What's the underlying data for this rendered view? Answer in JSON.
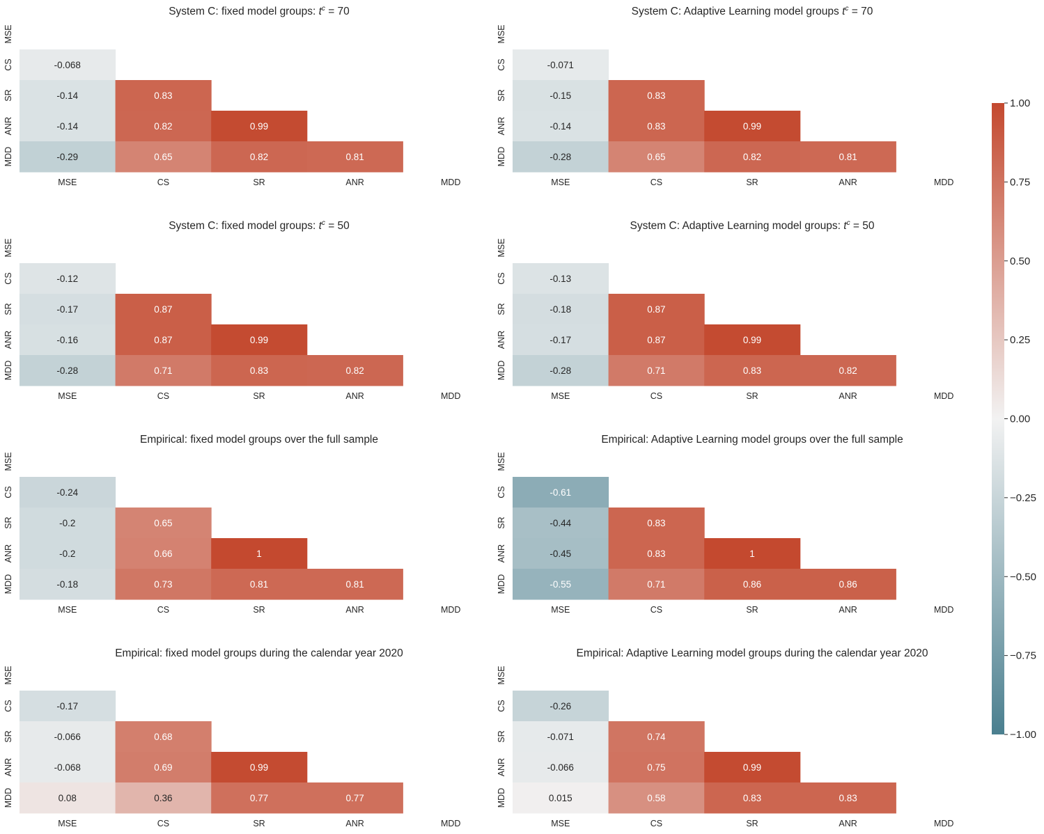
{
  "chart_data": {
    "type": "heatmap",
    "variables": [
      "MSE",
      "CS",
      "SR",
      "ANR",
      "MDD"
    ],
    "mask": "upper-triangle including diagonal (lower-triangular correlation matrix)",
    "colorbar": {
      "range": [
        -1.0,
        1.0
      ],
      "ticks": [
        "1.00",
        "0.75",
        "0.50",
        "0.25",
        "0.00",
        "−0.25",
        "−0.50",
        "−0.75",
        "−1.00"
      ],
      "tick_values": [
        1.0,
        0.75,
        0.5,
        0.25,
        0.0,
        -0.25,
        -0.5,
        -0.75,
        -1.0
      ],
      "negative_color": "#4a7f8f",
      "center_color": "#f2f2f2",
      "positive_color": "#c4492f",
      "placement": "right"
    },
    "panels": [
      {
        "title_prefix": "System C: fixed model groups: ",
        "title_sym": "t",
        "title_sup": "c",
        "title_suffix": " = 70",
        "lower": [
          [
            -0.068
          ],
          [
            -0.14,
            0.83
          ],
          [
            -0.14,
            0.82,
            0.99
          ],
          [
            -0.29,
            0.65,
            0.82,
            0.81
          ]
        ],
        "labels": [
          [
            "-0.068"
          ],
          [
            "-0.14",
            "0.83"
          ],
          [
            "-0.14",
            "0.82",
            "0.99"
          ],
          [
            "-0.29",
            "0.65",
            "0.82",
            "0.81"
          ]
        ]
      },
      {
        "title_prefix": "System C: Adaptive Learning model groups ",
        "title_sym": "t",
        "title_sup": "c",
        "title_suffix": " = 70",
        "lower": [
          [
            -0.071
          ],
          [
            -0.15,
            0.83
          ],
          [
            -0.14,
            0.83,
            0.99
          ],
          [
            -0.28,
            0.65,
            0.82,
            0.81
          ]
        ],
        "labels": [
          [
            "-0.071"
          ],
          [
            "-0.15",
            "0.83"
          ],
          [
            "-0.14",
            "0.83",
            "0.99"
          ],
          [
            "-0.28",
            "0.65",
            "0.82",
            "0.81"
          ]
        ]
      },
      {
        "title_prefix": "System C: fixed model groups: ",
        "title_sym": "t",
        "title_sup": "c",
        "title_suffix": " = 50",
        "lower": [
          [
            -0.12
          ],
          [
            -0.17,
            0.87
          ],
          [
            -0.16,
            0.87,
            0.99
          ],
          [
            -0.28,
            0.71,
            0.83,
            0.82
          ]
        ],
        "labels": [
          [
            "-0.12"
          ],
          [
            "-0.17",
            "0.87"
          ],
          [
            "-0.16",
            "0.87",
            "0.99"
          ],
          [
            "-0.28",
            "0.71",
            "0.83",
            "0.82"
          ]
        ]
      },
      {
        "title_prefix": "System C: Adaptive Learning model groups: ",
        "title_sym": "t",
        "title_sup": "c",
        "title_suffix": " = 50",
        "lower": [
          [
            -0.13
          ],
          [
            -0.18,
            0.87
          ],
          [
            -0.17,
            0.87,
            0.99
          ],
          [
            -0.28,
            0.71,
            0.83,
            0.82
          ]
        ],
        "labels": [
          [
            "-0.13"
          ],
          [
            "-0.18",
            "0.87"
          ],
          [
            "-0.17",
            "0.87",
            "0.99"
          ],
          [
            "-0.28",
            "0.71",
            "0.83",
            "0.82"
          ]
        ]
      },
      {
        "title_prefix": "Empirical: fixed model groups over the full sample",
        "title_sym": "",
        "title_sup": "",
        "title_suffix": "",
        "lower": [
          [
            -0.24
          ],
          [
            -0.2,
            0.65
          ],
          [
            -0.2,
            0.66,
            1
          ],
          [
            -0.18,
            0.73,
            0.81,
            0.81
          ]
        ],
        "labels": [
          [
            "-0.24"
          ],
          [
            "-0.2",
            "0.65"
          ],
          [
            "-0.2",
            "0.66",
            "1"
          ],
          [
            "-0.18",
            "0.73",
            "0.81",
            "0.81"
          ]
        ]
      },
      {
        "title_prefix": "Empirical: Adaptive Learning model groups over the full sample",
        "title_sym": "",
        "title_sup": "",
        "title_suffix": "",
        "lower": [
          [
            -0.61
          ],
          [
            -0.44,
            0.83
          ],
          [
            -0.45,
            0.83,
            1
          ],
          [
            -0.55,
            0.71,
            0.86,
            0.86
          ]
        ],
        "labels": [
          [
            "-0.61"
          ],
          [
            "-0.44",
            "0.83"
          ],
          [
            "-0.45",
            "0.83",
            "1"
          ],
          [
            "-0.55",
            "0.71",
            "0.86",
            "0.86"
          ]
        ]
      },
      {
        "title_prefix": "Empirical: fixed model groups during the calendar year 2020",
        "title_sym": "",
        "title_sup": "",
        "title_suffix": "",
        "lower": [
          [
            -0.17
          ],
          [
            -0.066,
            0.68
          ],
          [
            -0.068,
            0.69,
            0.99
          ],
          [
            0.08,
            0.36,
            0.77,
            0.77
          ]
        ],
        "labels": [
          [
            "-0.17"
          ],
          [
            "-0.066",
            "0.68"
          ],
          [
            "-0.068",
            "0.69",
            "0.99"
          ],
          [
            "0.08",
            "0.36",
            "0.77",
            "0.77"
          ]
        ]
      },
      {
        "title_prefix": "Empirical: Adaptive Learning model groups during the calendar year 2020",
        "title_sym": "",
        "title_sup": "",
        "title_suffix": "",
        "lower": [
          [
            -0.26
          ],
          [
            -0.071,
            0.74
          ],
          [
            -0.066,
            0.75,
            0.99
          ],
          [
            0.015,
            0.58,
            0.83,
            0.83
          ]
        ],
        "labels": [
          [
            "-0.26"
          ],
          [
            "-0.071",
            "0.74"
          ],
          [
            "-0.066",
            "0.75",
            "0.99"
          ],
          [
            "0.015",
            "0.58",
            "0.83",
            "0.83"
          ]
        ]
      }
    ]
  }
}
